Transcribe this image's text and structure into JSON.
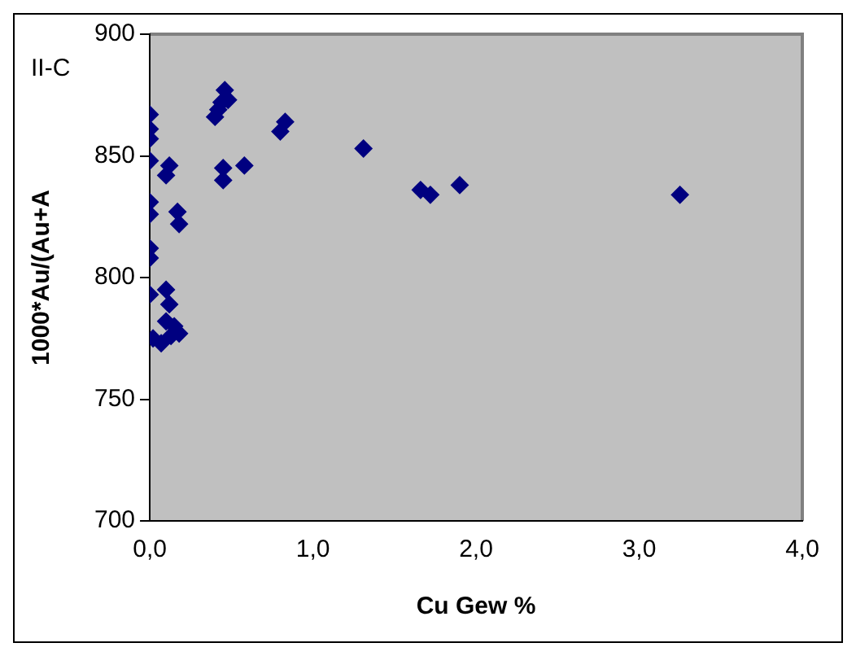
{
  "chart_data": {
    "type": "scatter",
    "xlabel": "Cu Gew %",
    "ylabel": "1000*Au/(Au+A",
    "annotations": [
      "II-C"
    ],
    "x": [
      0,
      0,
      0,
      0,
      0,
      0,
      0,
      0,
      0,
      0.02,
      0.07,
      0.12,
      0.1,
      0.17,
      0.18,
      0.1,
      0.12,
      0.1,
      0.15,
      0.13,
      0.18,
      0.4,
      0.42,
      0.44,
      0.46,
      0.48,
      0.45,
      0.45,
      0.58,
      0.8,
      0.83,
      1.31,
      1.66,
      1.72,
      1.9,
      3.25
    ],
    "series": [
      {
        "color": "#000080",
        "values": [
          867,
          861,
          857,
          848,
          831,
          826,
          812,
          808,
          793,
          775,
          773,
          846,
          842,
          827,
          822,
          795,
          789,
          782,
          780,
          776,
          777,
          866,
          869,
          872,
          877,
          873,
          845,
          840,
          846,
          860,
          864,
          853,
          836,
          834,
          838,
          834
        ]
      }
    ],
    "xlim": [
      0,
      4
    ],
    "xticks": [
      {
        "value": 0,
        "label": "0,0"
      },
      {
        "value": 1,
        "label": "1,0"
      },
      {
        "value": 2,
        "label": "2,0"
      },
      {
        "value": 3,
        "label": "3,0"
      },
      {
        "value": 4,
        "label": "4,0"
      }
    ],
    "ylim": [
      700,
      900
    ],
    "yticks": [
      700,
      750,
      800,
      850,
      900
    ],
    "marker": "diamond",
    "grid": false,
    "legend": false
  }
}
